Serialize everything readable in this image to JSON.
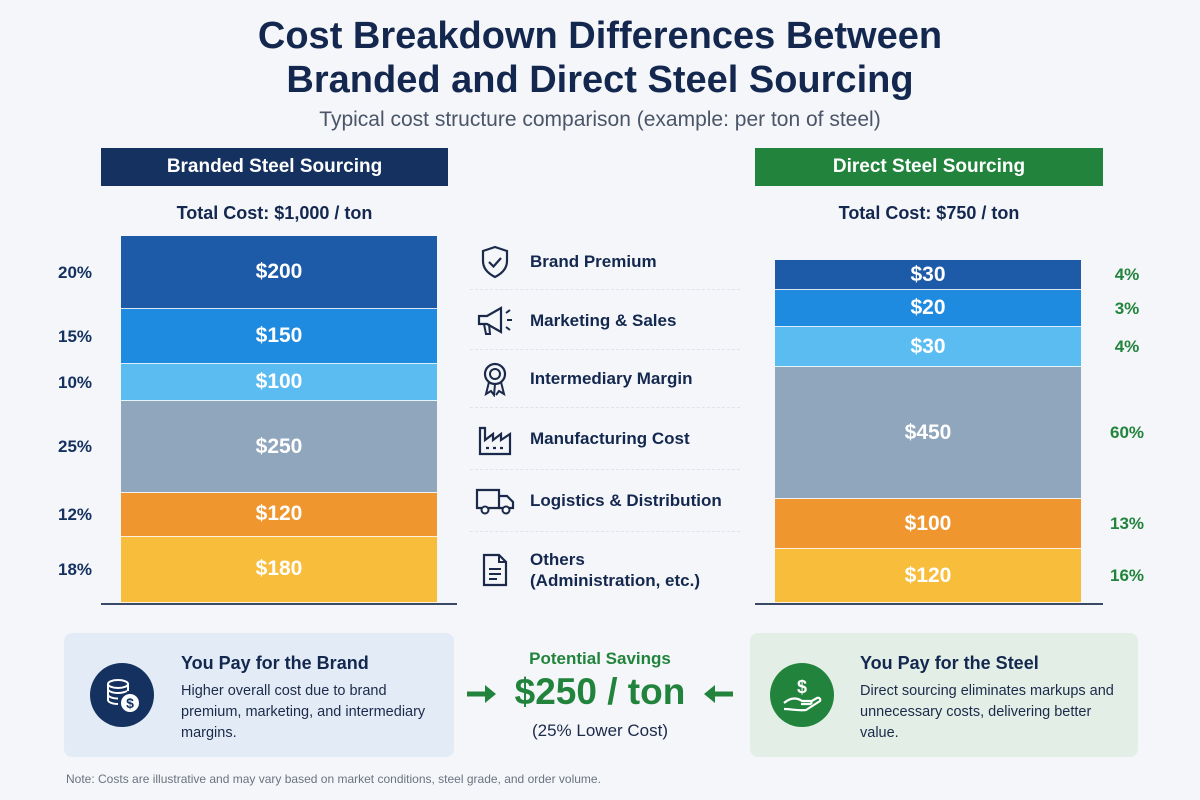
{
  "title": "Cost Breakdown Differences Between Branded and Direct Steel Sourcing",
  "subtitle": "Typical cost structure comparison (example: per ton of steel)",
  "colors": {
    "brand_premium": "#1d5aa8",
    "marketing": "#1e8be0",
    "intermediary": "#5bbcf2",
    "manufacturing": "#8fa6bd",
    "logistics": "#f0962f",
    "others": "#f9bd3c",
    "branded_header": "#14315f",
    "direct_header": "#22843c"
  },
  "chart_data": {
    "type": "bar",
    "stacked": true,
    "unit": "$ per ton",
    "categories": [
      "Brand Premium",
      "Marketing & Sales",
      "Intermediary Margin",
      "Manufacturing Cost",
      "Logistics & Distribution",
      "Others (Administration, etc.)"
    ],
    "series": [
      {
        "name": "Branded Steel Sourcing",
        "total_label": "Total Cost: $1,000 / ton",
        "total": 1000,
        "values": [
          200,
          150,
          100,
          250,
          120,
          180
        ],
        "value_labels": [
          "$200",
          "$150",
          "$100",
          "$250",
          "$120",
          "$180"
        ],
        "percent_labels": [
          "20%",
          "15%",
          "10%",
          "25%",
          "12%",
          "18%"
        ]
      },
      {
        "name": "Direct Steel Sourcing",
        "total_label": "Total Cost: $750 / ton",
        "total": 750,
        "values": [
          30,
          20,
          30,
          450,
          100,
          120
        ],
        "value_labels": [
          "$30",
          "$20",
          "$30",
          "$450",
          "$100",
          "$120"
        ],
        "percent_labels": [
          "4%",
          "3%",
          "4%",
          "60%",
          "13%",
          "16%"
        ]
      }
    ]
  },
  "legend": [
    {
      "label": "Brand Premium",
      "icon": "shield-check-icon"
    },
    {
      "label": "Marketing & Sales",
      "icon": "megaphone-icon"
    },
    {
      "label": "Intermediary Margin",
      "icon": "award-ribbon-icon"
    },
    {
      "label": "Manufacturing Cost",
      "icon": "factory-icon"
    },
    {
      "label": "Logistics & Distribution",
      "icon": "truck-icon"
    },
    {
      "label": "Others",
      "label2": "(Administration, etc.)",
      "icon": "document-icon"
    }
  ],
  "cards": {
    "branded": {
      "title": "You Pay for the Brand",
      "description": "Higher overall cost due to brand premium, marketing, and intermediary margins.",
      "icon": "coins-dollar-icon"
    },
    "direct": {
      "title": "You Pay for the Steel",
      "description": "Direct sourcing eliminates markups and unnecessary costs, delivering better value.",
      "icon": "hand-dollar-icon"
    }
  },
  "savings": {
    "label": "Potential Savings",
    "value": "$250 / ton",
    "note": "(25% Lower Cost)"
  },
  "footnote": "Note: Costs are illustrative and may vary based on market conditions, steel grade, and order volume."
}
